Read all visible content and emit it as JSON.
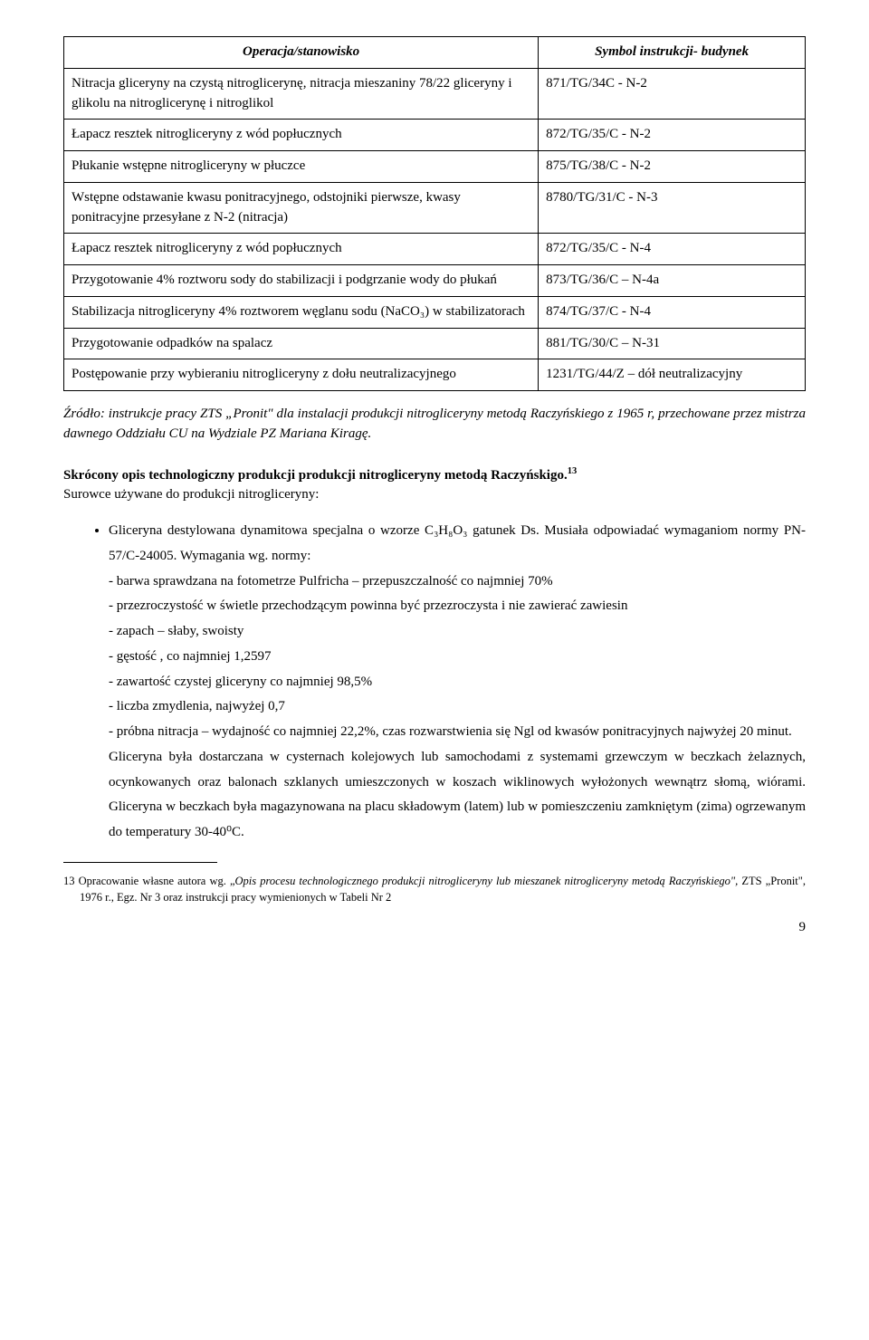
{
  "table": {
    "headers": [
      "Operacja/stanowisko",
      "Symbol instrukcji- budynek"
    ],
    "rows": [
      [
        "Nitracja gliceryny na czystą nitroglicerynę, nitracja mieszaniny 78/22 gliceryny i glikolu na  nitroglicerynę i nitroglikol",
        "871/TG/34C - N-2"
      ],
      [
        "Łapacz resztek nitrogliceryny z wód popłucznych",
        "872/TG/35/C - N-2"
      ],
      [
        "Płukanie wstępne nitrogliceryny w płuczce",
        "875/TG/38/C - N-2"
      ],
      [
        "Wstępne odstawanie kwasu ponitracyjnego, odstojniki pierwsze, kwasy ponitracyjne przesyłane z N-2 (nitracja)",
        "8780/TG/31/C - N-3"
      ],
      [
        "Łapacz resztek nitrogliceryny z wód popłucznych",
        "872/TG/35/C - N-4"
      ],
      [
        "Przygotowanie 4% roztworu sody do stabilizacji i podgrzanie wody do płukań",
        "873/TG/36/C – N-4a"
      ],
      [
        "Stabilizacja  nitrogliceryny 4% roztworem węglanu sodu (NaCO₃) w stabilizatorach",
        "874/TG/37/C - N-4"
      ],
      [
        "Przygotowanie odpadków na spalacz",
        "881/TG/30/C – N-31"
      ],
      [
        "Postępowanie przy wybieraniu nitrogliceryny z dołu neutralizacyjnego",
        "1231/TG/44/Z – dół neutralizacyjny"
      ]
    ]
  },
  "source": "Źródło: instrukcje pracy ZTS „Pronit\" dla instalacji produkcji nitrogliceryny metodą Raczyńskiego z 1965 r, przechowane przez mistrza dawnego Oddziału CU na Wydziale PZ  Mariana Kiragę.",
  "heading_bold": "Skrócony opis technologiczny produkcji produkcji nitrogliceryny metodą Raczyńskigo.",
  "heading_sup": "13",
  "intro": "Surowce używane do produkcji nitrogliceryny:",
  "bullet_open": "Gliceryna destylowana dynamitowa specjalna o wzorze C₃H₈O₃ gatunek Ds. Musiała odpowiadać wymaganiom normy PN-57/C-24005. Wymagania wg. normy:",
  "bullet_lines": [
    "- barwa sprawdzana na fotometrze Pulfricha – przepuszczalność co najmniej 70%",
    "- przezroczystość w świetle przechodzącym powinna być przezroczysta i nie zawierać zawiesin",
    "- zapach – słaby, swoisty",
    "- gęstość , co najmniej 1,2597",
    "- zawartość czystej gliceryny co najmniej 98,5%",
    "- liczba zmydlenia, najwyżej 0,7",
    "- próbna nitracja – wydajność co najmniej 22,2%, czas rozwarstwienia się Ngl od kwasów ponitracyjnych najwyżej 20 minut."
  ],
  "bullet_tail": "Gliceryna była dostarczana w cysternach kolejowych lub samochodami z systemami grzewczym w beczkach żelaznych, ocynkowanych oraz balonach szklanych umieszczonych w koszach wiklinowych wyłożonych wewnątrz słomą, wiórami. Gliceryna w beczkach była magazynowana na placu składowym (latem) lub w pomieszczeniu zamkniętym (zima) ogrzewanym do temperatury 30-40⁰C.",
  "footnote_num": "13",
  "footnote_pre": " Opracowanie własne autora wg. „",
  "footnote_ital": "Opis procesu technologicznego produkcji nitrogliceryny lub mieszanek nitrogliceryny metodą Raczyńskiego\",",
  "footnote_post": " ZTS „Pronit\", 1976 r., Egz. Nr 3 oraz instrukcji pracy wymienionych w Tabeli Nr 2",
  "page_number": "9"
}
